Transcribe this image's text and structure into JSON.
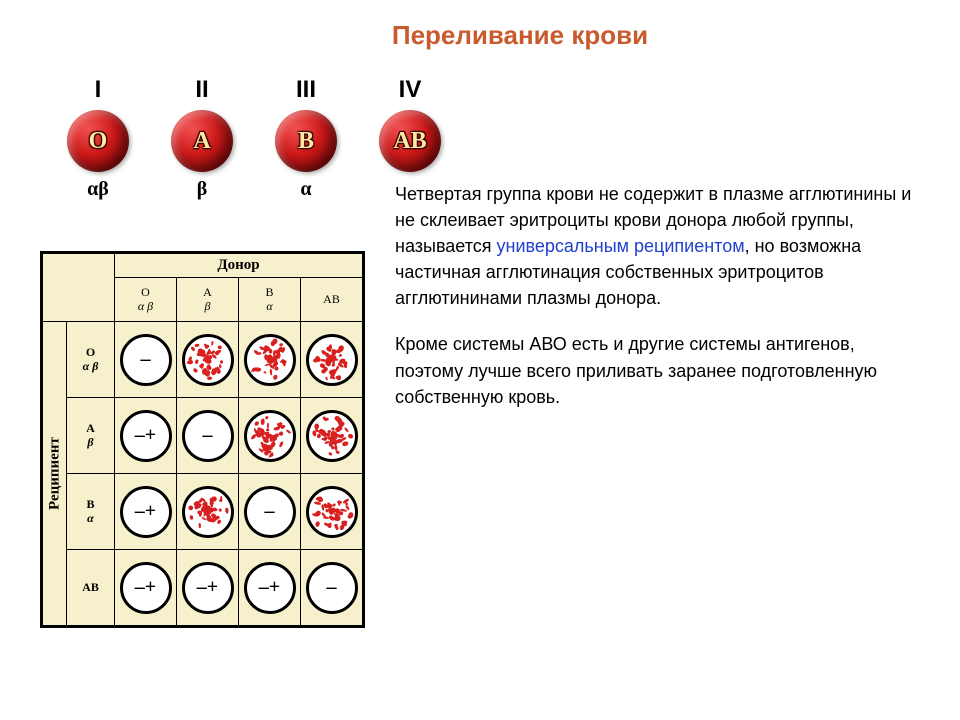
{
  "title": {
    "text": "Переливание крови",
    "color": "#c85a2e",
    "fontsize": 26
  },
  "blood_cells": {
    "cell_bg_gradient": [
      "#f05050",
      "#cc1818",
      "#8a0808"
    ],
    "letter_color": "#ffe8a0",
    "items": [
      {
        "roman": "I",
        "letter": "O",
        "agglutinin": "αβ"
      },
      {
        "roman": "II",
        "letter": "A",
        "agglutinin": "β"
      },
      {
        "roman": "III",
        "letter": "B",
        "agglutinin": "α"
      },
      {
        "roman": "IV",
        "letter": "AB",
        "agglutinin": ""
      }
    ]
  },
  "table": {
    "bg_color": "#f6f0cc",
    "border_color": "#000000",
    "donor_label": "Донор",
    "recipient_label": "Реципиент",
    "columns": [
      {
        "type": "O",
        "sub": "α β"
      },
      {
        "type": "A",
        "sub": "β"
      },
      {
        "type": "B",
        "sub": "α"
      },
      {
        "type": "AB",
        "sub": ""
      }
    ],
    "rows": [
      {
        "type": "O",
        "sub": "α β"
      },
      {
        "type": "A",
        "sub": "β"
      },
      {
        "type": "B",
        "sub": "α"
      },
      {
        "type": "AB",
        "sub": ""
      }
    ],
    "speckle_color": "#d82020",
    "cells": [
      [
        {
          "mark": "–",
          "agg": false
        },
        {
          "mark": "",
          "agg": true
        },
        {
          "mark": "",
          "agg": true
        },
        {
          "mark": "",
          "agg": true
        }
      ],
      [
        {
          "mark": "–+",
          "agg": false
        },
        {
          "mark": "–",
          "agg": false
        },
        {
          "mark": "",
          "agg": true
        },
        {
          "mark": "",
          "agg": true
        }
      ],
      [
        {
          "mark": "–+",
          "agg": false
        },
        {
          "mark": "",
          "agg": true
        },
        {
          "mark": "–",
          "agg": false
        },
        {
          "mark": "",
          "agg": true
        }
      ],
      [
        {
          "mark": "–+",
          "agg": false
        },
        {
          "mark": "–+",
          "agg": false
        },
        {
          "mark": "–+",
          "agg": false
        },
        {
          "mark": "–",
          "agg": false
        }
      ]
    ]
  },
  "paragraphs": {
    "p1_a": "Четвертая группа крови не содержит в плазме агглютинины и не склеивает эритроциты крови донора любой группы, называется ",
    "p1_link": "универсальным реципиентом",
    "p1_b": ", но возможна частичная агглютинация собственных эритроцитов агглютининами плазмы донора.",
    "p2": "Кроме системы АВО есть и другие системы антигенов, поэтому лучше всего приливать заранее подготовленную собственную кровь.",
    "link_color": "#2040d0"
  }
}
